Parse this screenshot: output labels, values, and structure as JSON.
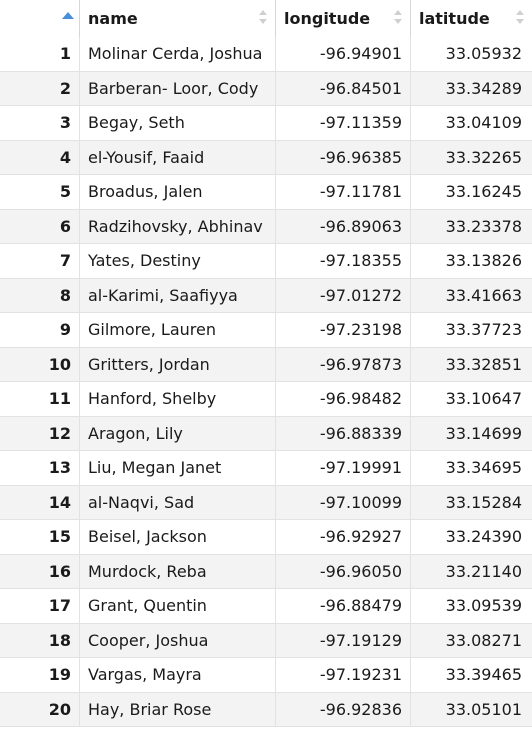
{
  "table": {
    "columns": [
      {
        "key": "index",
        "label": ""
      },
      {
        "key": "name",
        "label": "name"
      },
      {
        "key": "longitude",
        "label": "longitude"
      },
      {
        "key": "latitude",
        "label": "latitude"
      }
    ],
    "sorted_column": "index",
    "sort_direction": "ascending",
    "accent_color": "#4a90d9",
    "rows": [
      {
        "index": "1",
        "name": "Molinar Cerda, Joshua",
        "longitude": "-96.94901",
        "latitude": "33.05932"
      },
      {
        "index": "2",
        "name": "Barberan- Loor, Cody",
        "longitude": "-96.84501",
        "latitude": "33.34289"
      },
      {
        "index": "3",
        "name": "Begay, Seth",
        "longitude": "-97.11359",
        "latitude": "33.04109"
      },
      {
        "index": "4",
        "name": "el-Yousif, Faaid",
        "longitude": "-96.96385",
        "latitude": "33.32265"
      },
      {
        "index": "5",
        "name": "Broadus, Jalen",
        "longitude": "-97.11781",
        "latitude": "33.16245"
      },
      {
        "index": "6",
        "name": "Radzihovsky, Abhinav",
        "longitude": "-96.89063",
        "latitude": "33.23378"
      },
      {
        "index": "7",
        "name": "Yates, Destiny",
        "longitude": "-97.18355",
        "latitude": "33.13826"
      },
      {
        "index": "8",
        "name": "al-Karimi, Saafiyya",
        "longitude": "-97.01272",
        "latitude": "33.41663"
      },
      {
        "index": "9",
        "name": "Gilmore, Lauren",
        "longitude": "-97.23198",
        "latitude": "33.37723"
      },
      {
        "index": "10",
        "name": "Gritters, Jordan",
        "longitude": "-96.97873",
        "latitude": "33.32851"
      },
      {
        "index": "11",
        "name": "Hanford, Shelby",
        "longitude": "-96.98482",
        "latitude": "33.10647"
      },
      {
        "index": "12",
        "name": "Aragon, Lily",
        "longitude": "-96.88339",
        "latitude": "33.14699"
      },
      {
        "index": "13",
        "name": "Liu, Megan Janet",
        "longitude": "-97.19991",
        "latitude": "33.34695"
      },
      {
        "index": "14",
        "name": "al-Naqvi, Sad",
        "longitude": "-97.10099",
        "latitude": "33.15284"
      },
      {
        "index": "15",
        "name": "Beisel, Jackson",
        "longitude": "-96.92927",
        "latitude": "33.24390"
      },
      {
        "index": "16",
        "name": "Murdock, Reba",
        "longitude": "-96.96050",
        "latitude": "33.21140"
      },
      {
        "index": "17",
        "name": "Grant, Quentin",
        "longitude": "-96.88479",
        "latitude": "33.09539"
      },
      {
        "index": "18",
        "name": "Cooper, Joshua",
        "longitude": "-97.19129",
        "latitude": "33.08271"
      },
      {
        "index": "19",
        "name": "Vargas, Mayra",
        "longitude": "-97.19231",
        "latitude": "33.39465"
      },
      {
        "index": "20",
        "name": "Hay, Briar Rose",
        "longitude": "-96.92836",
        "latitude": "33.05101"
      }
    ]
  }
}
